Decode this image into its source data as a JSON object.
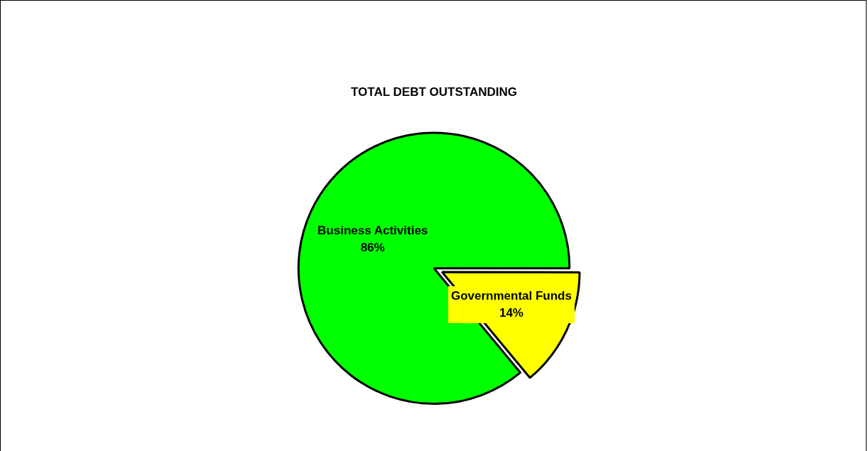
{
  "chart_data": {
    "type": "pie",
    "title": "TOTAL DEBT OUTSTANDING",
    "categories": [
      "Business Activities",
      "Governmental Funds"
    ],
    "values": [
      86,
      14
    ],
    "colors": [
      "#00ff00",
      "#ffff00"
    ],
    "value_labels": [
      "86%",
      "14%"
    ],
    "legend": false
  }
}
